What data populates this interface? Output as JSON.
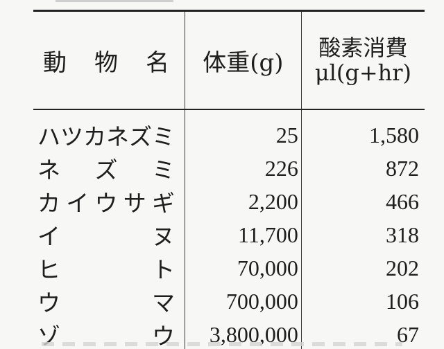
{
  "table": {
    "headers": {
      "animal": [
        "動",
        "物",
        "名"
      ],
      "weight": "体重(g)",
      "oxygen_line1": "酸素消費",
      "oxygen_line2": "μl(g+hr)"
    },
    "rows": [
      {
        "animal": [
          "ハ",
          "ツ",
          "カ",
          "ネ",
          "ズ",
          "ミ"
        ],
        "weight": "25",
        "oxygen": "1,580"
      },
      {
        "animal": [
          "ネ",
          "ズ",
          "ミ"
        ],
        "weight": "226",
        "oxygen": "872"
      },
      {
        "animal": [
          "カ",
          "イ",
          "ウ",
          "サ",
          "ギ"
        ],
        "weight": "2,200",
        "oxygen": "466"
      },
      {
        "animal": [
          "イ",
          "ヌ"
        ],
        "weight": "11,700",
        "oxygen": "318"
      },
      {
        "animal": [
          "ヒ",
          "ト"
        ],
        "weight": "70,000",
        "oxygen": "202"
      },
      {
        "animal": [
          "ウ",
          "マ"
        ],
        "weight": "700,000",
        "oxygen": "106"
      },
      {
        "animal": [
          "ゾ",
          "ウ"
        ],
        "weight": "3,800,000",
        "oxygen": "67"
      }
    ]
  }
}
